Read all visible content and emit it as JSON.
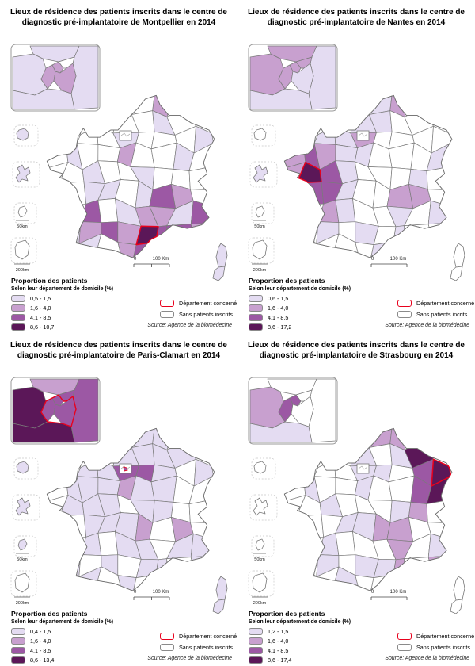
{
  "colors": {
    "class1": "#E4DCF2",
    "class2": "#C8A0CF",
    "class3": "#9C58A4",
    "class4": "#5B1758",
    "no_data": "#FFFFFF",
    "border": "#7a7a7a",
    "outline": "#6f6f6f",
    "concerned_outline": "#E8001C",
    "inset_border": "#999999"
  },
  "maps": [
    {
      "id": "montpellier",
      "title_line1": "Lieux de résidence des patients inscrits dans le centre de",
      "title_line2": "diagnostic pré-implantatoire de Montpellier en 2014",
      "legend": {
        "heading": "Proportion des patients",
        "subheading": "Selon leur département de domicile (%)",
        "classes": [
          "0,5 - 1,5",
          "1,6 - 4,0",
          "4,1 - 8,5",
          "8,6 - 10,7"
        ],
        "concerned_label": "Département concerné",
        "none_label": "Sans patients inscrits"
      },
      "source": "Source: Agence de la biomédecine",
      "scale_bar": {
        "zero": "0",
        "label": "100 Km"
      },
      "island_scale_labels": [
        "50km",
        "200km"
      ],
      "cells": {
        "4,0": 1,
        "6,0": 2,
        "3,1": 1,
        "6,1": 1,
        "4,2": 1,
        "8,2": 1,
        "1,3": 1,
        "4,3": 2,
        "7,3": 1,
        "2,4": 1,
        "5,4": 1,
        "2,5": 1,
        "3,5": 1,
        "5,5": 1,
        "6,5": 3,
        "7,5": 2,
        "2,6": 3,
        "4,6": 1,
        "5,6": 2,
        "6,6": 2,
        "7,6": 1,
        "8,6": 3,
        "1,7": 1,
        "2,7": 2,
        "3,7": 3,
        "4,7": 2,
        "5,7": 4,
        "6,7": 3,
        "7,7": 3,
        "8,7": 2,
        "2,8": 1,
        "4,8": 2,
        "5,8": 3
      },
      "red_cell": "5,7",
      "corsica": [
        1,
        1
      ],
      "islands": [
        1,
        1,
        0,
        0
      ],
      "inset": {
        "classes": {
          "YV": 1,
          "VO": 1,
          "SM": 1,
          "ES": 1,
          "SSD": 0,
          "PA": 2,
          "HdS": 2,
          "VdM": 2
        },
        "red": false
      },
      "box_red": false
    },
    {
      "id": "nantes",
      "title_line1": "Lieux de résidence des patients inscrits dans le centre de",
      "title_line2": "diagnostic pré-implantatoire de Nantes en 2014",
      "legend": {
        "heading": "Proportion des patients",
        "subheading": "Selon leur département de domicile (%)",
        "classes": [
          "0,6 - 1,5",
          "1,6 - 4,0",
          "4,1 - 8,5",
          "8,6 - 17,2"
        ],
        "concerned_label": "Département concerné",
        "none_label": "Sans patients incrits"
      },
      "source": "Source: Agence de la biomédecine",
      "scale_bar": {
        "zero": "0",
        "label": "100 Km"
      },
      "island_scale_labels": [
        "50km",
        "200km"
      ],
      "cells": {
        "5,0": 1,
        "6,0": 2,
        "3,1": 2,
        "4,1": 1,
        "5,1": 1,
        "2,2": 1,
        "3,2": 1,
        "4,2": 2,
        "0,3": 2,
        "1,3": 3,
        "2,3": 2,
        "3,3": 1,
        "4,3": 1,
        "8,3": 1,
        "0,4": 2,
        "1,4": 4,
        "2,4": 3,
        "3,4": 1,
        "7,4": 1,
        "1,5": 3,
        "2,5": 3,
        "3,5": 1,
        "6,5": 2,
        "7,5": 2,
        "2,6": 2,
        "3,6": 1,
        "6,6": 1,
        "8,6": 1,
        "2,7": 1,
        "4,7": 1,
        "6,7": 1,
        "5,8": 1
      },
      "red_cell": "1,4",
      "corsica": [
        0,
        0
      ],
      "islands": [
        0,
        1,
        0,
        0
      ],
      "inset": {
        "classes": {
          "YV": 2,
          "VO": 2,
          "SM": 1,
          "ES": 1,
          "SSD": 2,
          "PA": 2,
          "HdS": 2,
          "VdM": 1
        },
        "red": false
      },
      "box_red": false
    },
    {
      "id": "paris-clamart",
      "title_line1": "Lieux de résidence des patients inscrits dans le centre de",
      "title_line2": "diagnostic pré-implantatoire de Paris-Clamart en 2014",
      "legend": {
        "heading": "Proportion des patients",
        "subheading": "Selon leur département de domicile (%)",
        "classes": [
          "0,4 - 1,5",
          "1,6 - 4,0",
          "4,1 - 8,5",
          "8,6 - 13,4"
        ],
        "concerned_label": "Département concerné",
        "none_label": "Sans patients inscrits"
      },
      "source": "Source: Agence de la biomédecine",
      "scale_bar": {
        "zero": "0",
        "label": "100 Km"
      },
      "island_scale_labels": [
        "50km",
        "200km"
      ],
      "cells": {
        "5,0": 1,
        "6,0": 1,
        "3,1": 2,
        "4,1": 1,
        "5,1": 1,
        "6,1": 1,
        "7,1": 1,
        "2,2": 1,
        "3,2": 1,
        "4,2": 3,
        "5,2": 3,
        "6,2": 1,
        "8,2": 1,
        "1,3": 1,
        "2,3": 1,
        "3,3": 1,
        "4,3": 2,
        "5,3": 1,
        "6,3": 1,
        "1,4": 1,
        "2,4": 1,
        "3,4": 1,
        "5,4": 1,
        "6,4": 1,
        "2,5": 1,
        "3,5": 1,
        "4,5": 1,
        "5,5": 2,
        "7,5": 2,
        "2,6": 1,
        "4,6": 1,
        "5,6": 1,
        "7,6": 1,
        "8,6": 1,
        "1,7": 1,
        "3,7": 1,
        "5,7": 1,
        "6,7": 1,
        "8,7": 1,
        "2,8": 1,
        "4,8": 1
      },
      "red_cell": null,
      "corsica": [
        1,
        1
      ],
      "islands": [
        1,
        1,
        1,
        0
      ],
      "inset": {
        "classes": {
          "YV": 4,
          "VO": 2,
          "SM": 3,
          "ES": 4,
          "SSD": 3,
          "PA": 3,
          "HdS": 3,
          "VdM": 3
        },
        "red": true
      },
      "box_red": true
    },
    {
      "id": "strasbourg",
      "title_line1": "Lieux de résidence des patients inscrits dans le centre de",
      "title_line2": "diagnostic pré-implantatoire de Strasbourg en 2014",
      "legend": {
        "heading": "Proportion des patients",
        "subheading": "Selon leur département de domicile (%)",
        "classes": [
          "1,2 - 1,5",
          "1,6 - 4,0",
          "4,1 - 8,5",
          "8,6 - 17,4"
        ],
        "concerned_label": "Département concerné",
        "none_label": "Sans patients inscrits"
      },
      "source": "Source: Agence de la biomédecine",
      "scale_bar": {
        "zero": "0",
        "label": "100 Km"
      },
      "island_scale_labels": [
        "50km",
        "200km"
      ],
      "cells": {
        "5,0": 2,
        "6,0": 2,
        "3,1": 2,
        "4,1": 1,
        "6,1": 1,
        "7,1": 4,
        "4,2": 1,
        "5,2": 1,
        "7,2": 3,
        "8,2": 4,
        "9,2": 4,
        "1,3": 1,
        "4,3": 1,
        "7,3": 3,
        "8,3": 4,
        "2,4": 1,
        "6,4": 1,
        "7,4": 2,
        "3,5": 1,
        "4,5": 1,
        "5,5": 2,
        "6,5": 2,
        "2,6": 1,
        "6,6": 2,
        "8,6": 1,
        "2,7": 1,
        "4,7": 1,
        "5,7": 1,
        "6,7": 2,
        "8,7": 2,
        "3,8": 1
      },
      "red_cell": "8,2",
      "corsica": [
        0,
        0
      ],
      "islands": [
        0,
        0,
        0,
        0
      ],
      "inset": {
        "classes": {
          "YV": 2,
          "VO": 0,
          "SM": 0,
          "ES": 1,
          "SSD": 0,
          "PA": 3,
          "HdS": 3,
          "VdM": 0
        },
        "red": false
      },
      "box_red": false
    }
  ]
}
